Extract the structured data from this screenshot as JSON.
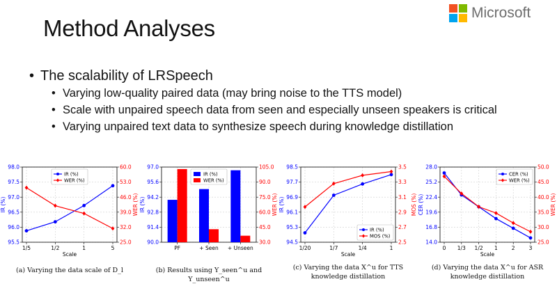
{
  "slide": {
    "title": "Method Analyses",
    "logo_text": "Microsoft",
    "logo_colors": [
      "#f25022",
      "#7fba00",
      "#00a4ef",
      "#ffb900"
    ]
  },
  "bullets": {
    "main": "The scalability of LRSpeech",
    "sub": [
      "Varying low-quality paired data (may bring noise to the TTS model)",
      "Scale with unpaired speech data from seen and especially unseen speakers is critical",
      "Varying unpaired text data to synthesize speech during knowledge distillation"
    ]
  },
  "colors": {
    "left_axis": "#0000ff",
    "right_axis": "#ff0000"
  },
  "captions": [
    "(a) Varying the data scale of D_l",
    "(b) Results using Y_seen^u and Y_unseen^u",
    "(c) Varying the data X^u for TTS knowledge distillation",
    "(d) Varying the data X^u for ASR knowledge distillation"
  ],
  "chart_data": [
    {
      "type": "line",
      "categories": [
        "1/5",
        "1/2",
        "1",
        "5"
      ],
      "xlabel": "Scale",
      "ylabel_left": "IR (%)",
      "ylabel_right": "WER (%)",
      "ylim_left": [
        95.5,
        98.0
      ],
      "yticks_left": [
        "95.5",
        "96.0",
        "96.5",
        "97.0",
        "97.5",
        "98.0"
      ],
      "ylim_right": [
        25.0,
        60.0
      ],
      "yticks_right": [
        "25.0",
        "32.0",
        "39.0",
        "46.0",
        "53.0",
        "60.0"
      ],
      "legend": "top-center",
      "grid": true,
      "series": [
        {
          "name": "IR (%)",
          "axis": "left",
          "marker": "circle",
          "color": "#0000ff",
          "values": [
            95.88,
            96.18,
            96.72,
            97.38
          ]
        },
        {
          "name": "WER (%)",
          "axis": "right",
          "marker": "diamond",
          "color": "#ff0000",
          "values": [
            50.4,
            42.0,
            38.4,
            31.4
          ]
        }
      ]
    },
    {
      "type": "bar",
      "categories": [
        "PF",
        "+ Seen",
        "+ Unseen"
      ],
      "ylabel_left": "IR (%)",
      "ylabel_right": "WER (%)",
      "ylim_left": [
        90.0,
        97.0
      ],
      "yticks_left": [
        "90.0",
        "91.4",
        "92.8",
        "94.2",
        "95.6",
        "97.0"
      ],
      "ylim_right": [
        30.0,
        105.0
      ],
      "yticks_right": [
        "30.0",
        "45.0",
        "60.0",
        "75.0",
        "90.0",
        "105.0"
      ],
      "legend": "top-center",
      "grid": true,
      "series": [
        {
          "name": "IR (%)",
          "axis": "left",
          "color": "#0000ff",
          "values": [
            93.95,
            94.95,
            96.7
          ]
        },
        {
          "name": "WER (%)",
          "axis": "right",
          "color": "#ff0000",
          "values": [
            103.0,
            43.0,
            36.5
          ]
        }
      ]
    },
    {
      "type": "line",
      "categories": [
        "1/20",
        "1/7",
        "1/4",
        "1"
      ],
      "xlabel": "Scale",
      "ylabel_left": "IR (%)",
      "ylabel_right": "MOS (%)",
      "ylim_left": [
        94.5,
        98.5
      ],
      "yticks_left": [
        "94.5",
        "95.3",
        "96.1",
        "96.9",
        "97.7",
        "98.5"
      ],
      "ylim_right": [
        2.5,
        3.5
      ],
      "yticks_right": [
        "2.5",
        "2.7",
        "2.9",
        "3.1",
        "3.3",
        "3.5"
      ],
      "legend": "bottom-right",
      "grid": true,
      "series": [
        {
          "name": "IR (%)",
          "axis": "left",
          "marker": "circle",
          "color": "#0000ff",
          "values": [
            95.0,
            97.0,
            97.6,
            98.1
          ]
        },
        {
          "name": "MOS (%)",
          "axis": "right",
          "marker": "diamond",
          "color": "#ff0000",
          "values": [
            2.97,
            3.28,
            3.39,
            3.44
          ]
        }
      ]
    },
    {
      "type": "line",
      "categories": [
        "0",
        "1/3",
        "1/2",
        "1",
        "2",
        "3"
      ],
      "xlabel": "Scale",
      "ylabel_left": "CER (%)",
      "ylabel_right": "WER (%)",
      "ylim_left": [
        14.0,
        28.0
      ],
      "yticks_left": [
        "14.0",
        "16.8",
        "19.6",
        "22.4",
        "25.2",
        "28.0"
      ],
      "ylim_right": [
        25.0,
        50.0
      ],
      "yticks_right": [
        "25.0",
        "30.0",
        "35.0",
        "40.0",
        "45.0",
        "50.0"
      ],
      "legend": "top-right",
      "grid": true,
      "series": [
        {
          "name": "CER (%)",
          "axis": "left",
          "marker": "circle",
          "color": "#0000ff",
          "values": [
            26.9,
            22.8,
            20.6,
            18.4,
            16.6,
            14.8
          ]
        },
        {
          "name": "WER (%)",
          "axis": "right",
          "marker": "diamond",
          "color": "#ff0000",
          "values": [
            46.9,
            41.2,
            36.8,
            34.7,
            31.4,
            28.5
          ]
        }
      ]
    }
  ]
}
